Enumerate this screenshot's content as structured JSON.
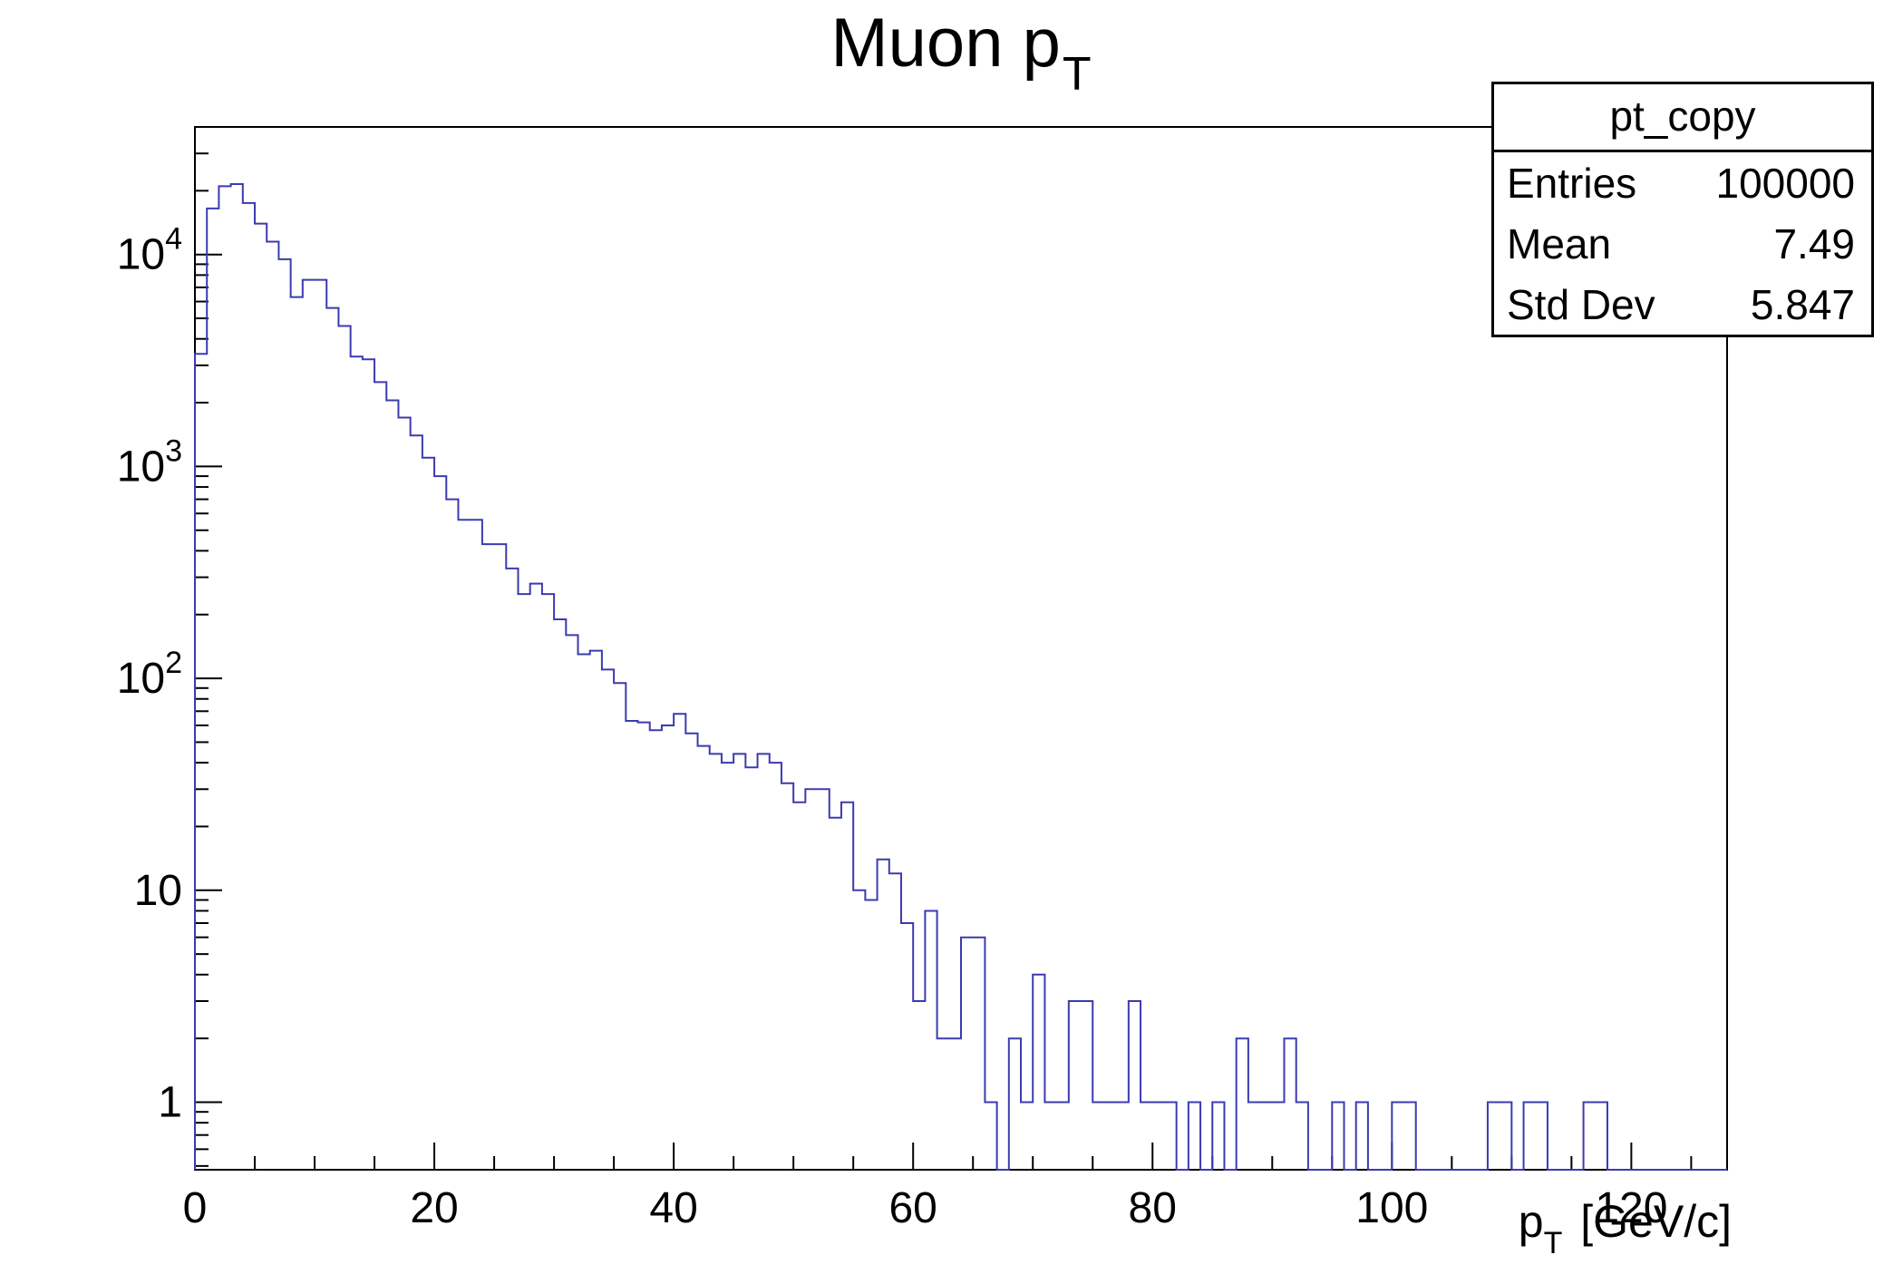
{
  "title": {
    "main": "Muon p",
    "sub": "T"
  },
  "stats_box": {
    "title": "pt_copy",
    "rows": [
      {
        "label": "Entries",
        "value": "100000"
      },
      {
        "label": "Mean",
        "value": "7.49"
      },
      {
        "label": "Std Dev",
        "value": "5.847"
      }
    ]
  },
  "x_axis_title": {
    "main": "p",
    "sub": "T",
    "rest": " [GeV/c]"
  },
  "chart_data": {
    "type": "bar",
    "style": "ROOT TH1 step-outline histogram, logarithmic y axis",
    "title": "Muon pT",
    "xlabel": "pT [GeV/c]",
    "ylabel": "",
    "histogram_name": "pt_copy",
    "entries": 100000,
    "mean": 7.49,
    "std_dev": 5.847,
    "line_color": "#3b3bb0",
    "bin_width": 1,
    "x_start": 0,
    "x_axis": {
      "min": 0,
      "max": 128,
      "major_ticks": [
        0,
        20,
        40,
        60,
        80,
        100,
        120
      ],
      "tick_labels": [
        "0",
        "20",
        "40",
        "60",
        "80",
        "100",
        "120"
      ],
      "minor_step": 5
    },
    "y_axis": {
      "scale": "log",
      "min": 0.48,
      "max": 40000,
      "ticks": [
        {
          "value": 1,
          "label": "1",
          "exp": ""
        },
        {
          "value": 10,
          "label": "10",
          "exp": ""
        },
        {
          "value": 100,
          "label": "10",
          "exp": "2"
        },
        {
          "value": 1000,
          "label": "10",
          "exp": "3"
        },
        {
          "value": 10000,
          "label": "10",
          "exp": "4"
        }
      ]
    },
    "bins": [
      3400,
      16500,
      21000,
      21500,
      17500,
      14000,
      11500,
      9500,
      6300,
      7600,
      7600,
      5600,
      4600,
      3300,
      3200,
      2500,
      2050,
      1700,
      1400,
      1100,
      900,
      700,
      560,
      560,
      430,
      430,
      330,
      250,
      280,
      250,
      190,
      160,
      130,
      135,
      110,
      95,
      63,
      62,
      57,
      60,
      68,
      55,
      48,
      44,
      40,
      44,
      38,
      44,
      40,
      32,
      26,
      30,
      30,
      22,
      26,
      10,
      9,
      14,
      12,
      7,
      3,
      8,
      2,
      2,
      6,
      6,
      1,
      0,
      2,
      1,
      4,
      1,
      1,
      3,
      3,
      1,
      1,
      1,
      3,
      1,
      1,
      1,
      0,
      1,
      0,
      1,
      0,
      2,
      1,
      1,
      1,
      2,
      1,
      0,
      0,
      1,
      0,
      1,
      0,
      0,
      1,
      1,
      0,
      0,
      0,
      0,
      0,
      0,
      1,
      1,
      0,
      1,
      1,
      0,
      0,
      0,
      1,
      1,
      0,
      0,
      0,
      0,
      0,
      0,
      0,
      0,
      0,
      0
    ]
  }
}
